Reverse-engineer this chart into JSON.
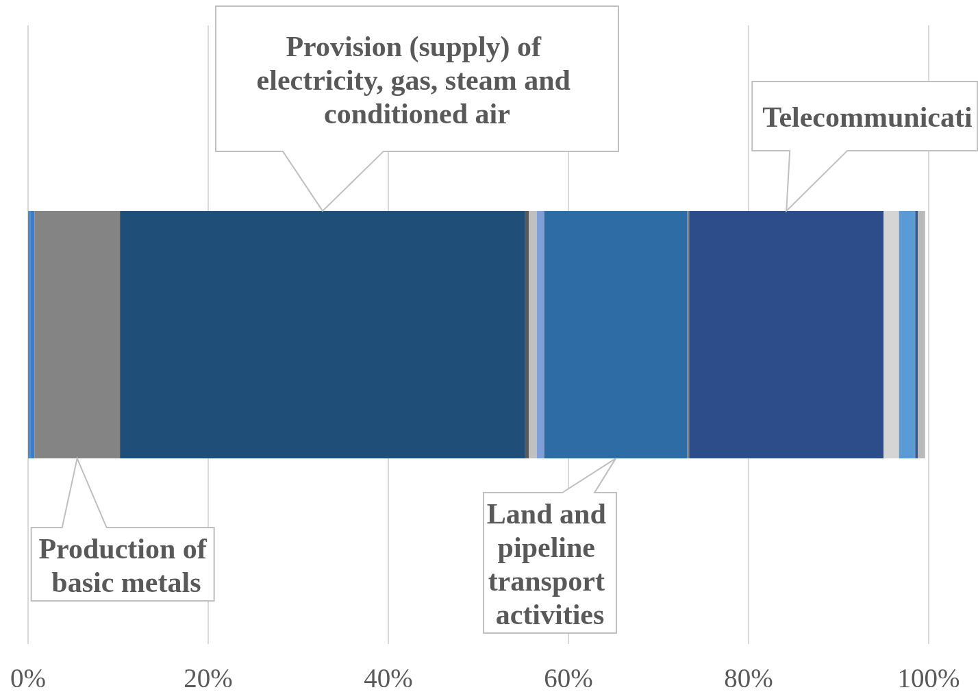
{
  "chart_data": {
    "type": "bar",
    "orientation": "horizontal",
    "stacked": true,
    "categories": [
      null
    ],
    "series": [
      {
        "color": "#4f8bcf",
        "values": [
          0.3
        ]
      },
      {
        "color": "#3c7dc9",
        "values": [
          0.4
        ]
      },
      {
        "name": "Production of basic metals",
        "color": "#848484",
        "values": [
          9.5
        ]
      },
      {
        "name": "Provision (supply) of electricity, gas, steam and conditioned air",
        "color": "#1f4e79",
        "values": [
          45.0
        ]
      },
      {
        "color": "#595959",
        "values": [
          0.4
        ]
      },
      {
        "color": "#c0c0c0",
        "values": [
          0.9
        ]
      },
      {
        "color": "#7f9fd6",
        "values": [
          0.8
        ]
      },
      {
        "name": "Land and pipeline transport activities",
        "color": "#2e6ca5",
        "values": [
          15.9
        ]
      },
      {
        "color": "#7f7f7f",
        "values": [
          0.2
        ]
      },
      {
        "name": "Telecommunicati",
        "color": "#2c4d89",
        "values": [
          21.6
        ]
      },
      {
        "color": "#d5d5d5",
        "values": [
          1.7
        ]
      },
      {
        "color": "#5b9bd5",
        "values": [
          1.7
        ]
      },
      {
        "color": "#8f8f8f",
        "values": [
          0.1
        ]
      },
      {
        "color": "#2e5a9c",
        "values": [
          0.3
        ]
      },
      {
        "color": "#b9b9b9",
        "values": [
          0.8
        ]
      }
    ],
    "xlim": [
      0,
      100
    ],
    "xticks": [
      {
        "value": 0,
        "label": "0%"
      },
      {
        "value": 20,
        "label": "20%"
      },
      {
        "value": 40,
        "label": "40%"
      },
      {
        "value": 60,
        "label": "60%"
      },
      {
        "value": 80,
        "label": "80%"
      },
      {
        "value": 100,
        "label": "100%"
      }
    ],
    "grid": "x",
    "tick_labels": "x"
  }
}
